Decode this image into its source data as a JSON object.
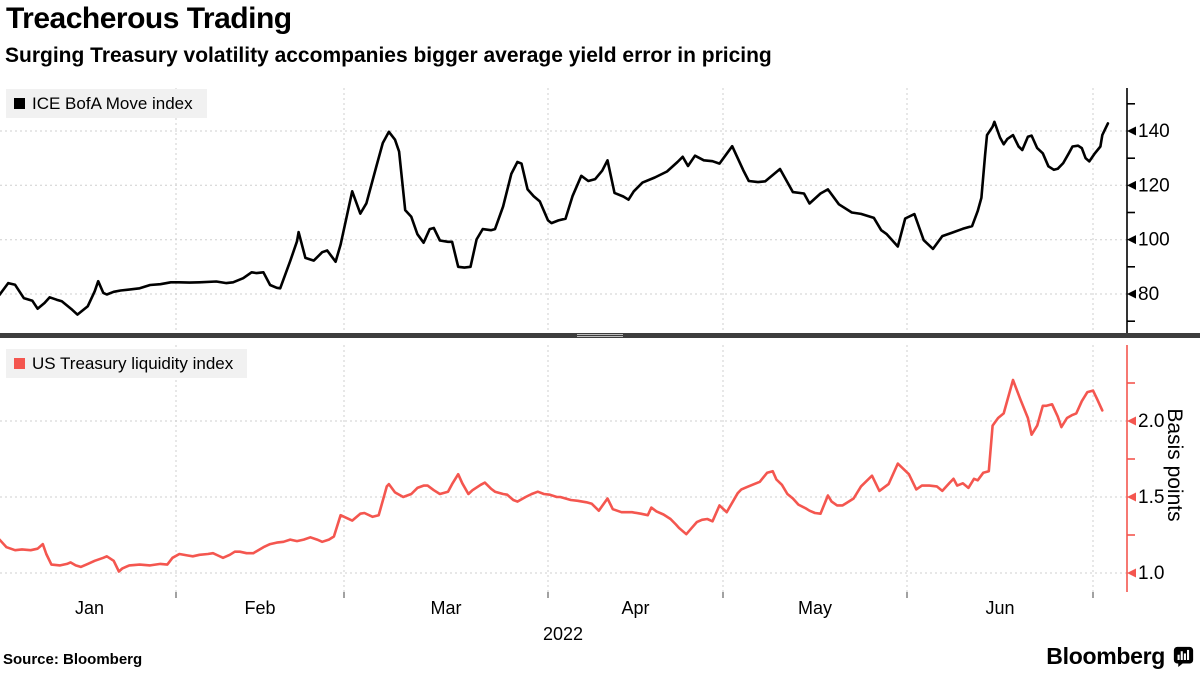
{
  "header": {
    "title": "Treacherous Trading",
    "subtitle": "Surging Treasury volatility accompanies bigger average yield error in pricing"
  },
  "x_axis": {
    "month_labels": [
      "Jan",
      "Feb",
      "Mar",
      "Apr",
      "May",
      "Jun"
    ],
    "year_label": "2022"
  },
  "footer": {
    "source_label": "Source: Bloomberg",
    "brand": "Bloomberg"
  },
  "colors": {
    "move_line": "#000000",
    "liquidity_line": "#f4564f",
    "grid": "#cfcfcf",
    "legend_bg": "#f1f1f1",
    "divider": "#3d3d3d",
    "text": "#000000"
  },
  "chart_data": [
    {
      "type": "line",
      "name": "ICE BofA Move index",
      "color": "#000000",
      "x_unit": "month of 2022 (1.0 = Jan 1, 7.0 = Jul 1)",
      "ylim": [
        65,
        152
      ],
      "ytick_values": [
        80,
        100,
        120,
        140
      ],
      "ytick_labels": [
        "80",
        "100",
        "120",
        "140"
      ],
      "minor_ticks": [
        70,
        90,
        110,
        130,
        150
      ],
      "grid": true,
      "legend_position": "top-left",
      "points": [
        [
          0.98,
          79.7
        ],
        [
          1.03,
          84
        ],
        [
          1.07,
          83.4
        ],
        [
          1.12,
          78.5
        ],
        [
          1.17,
          77.5
        ],
        [
          1.2,
          74.6
        ],
        [
          1.24,
          76.7
        ],
        [
          1.27,
          78.8
        ],
        [
          1.31,
          77.9
        ],
        [
          1.34,
          77.3
        ],
        [
          1.4,
          74.2
        ],
        [
          1.43,
          72.4
        ],
        [
          1.49,
          75.5
        ],
        [
          1.53,
          81
        ],
        [
          1.55,
          84.7
        ],
        [
          1.58,
          80.4
        ],
        [
          1.6,
          79.8
        ],
        [
          1.64,
          80.8
        ],
        [
          1.68,
          81.3
        ],
        [
          1.79,
          82.1
        ],
        [
          1.85,
          83.3
        ],
        [
          1.91,
          83.6
        ],
        [
          1.97,
          84.3
        ],
        [
          2.02,
          84.3
        ],
        [
          2.08,
          84.2
        ],
        [
          2.14,
          84.3
        ],
        [
          2.24,
          84.6
        ],
        [
          2.3,
          84
        ],
        [
          2.34,
          84.3
        ],
        [
          2.4,
          85.8
        ],
        [
          2.45,
          88
        ],
        [
          2.48,
          87.7
        ],
        [
          2.52,
          88
        ],
        [
          2.56,
          83.3
        ],
        [
          2.6,
          82.3
        ],
        [
          2.62,
          82.1
        ],
        [
          2.68,
          92.1
        ],
        [
          2.72,
          99.4
        ],
        [
          2.73,
          102.8
        ],
        [
          2.77,
          93.3
        ],
        [
          2.82,
          92.3
        ],
        [
          2.87,
          95.4
        ],
        [
          2.9,
          96
        ],
        [
          2.95,
          91.9
        ],
        [
          2.98,
          98.2
        ],
        [
          3.04,
          117.8
        ],
        [
          3.08,
          109.6
        ],
        [
          3.11,
          113.4
        ],
        [
          3.16,
          127.3
        ],
        [
          3.19,
          135.6
        ],
        [
          3.22,
          139.7
        ],
        [
          3.25,
          136.8
        ],
        [
          3.27,
          132.4
        ],
        [
          3.3,
          110.9
        ],
        [
          3.33,
          108.4
        ],
        [
          3.36,
          102
        ],
        [
          3.39,
          98.9
        ],
        [
          3.42,
          103.9
        ],
        [
          3.44,
          104.3
        ],
        [
          3.47,
          99.7
        ],
        [
          3.51,
          99.2
        ],
        [
          3.53,
          99.2
        ],
        [
          3.56,
          90
        ],
        [
          3.59,
          89.7
        ],
        [
          3.62,
          90
        ],
        [
          3.65,
          100.1
        ],
        [
          3.68,
          103.9
        ],
        [
          3.72,
          103.5
        ],
        [
          3.74,
          103.9
        ],
        [
          3.78,
          112.2
        ],
        [
          3.82,
          124.2
        ],
        [
          3.85,
          128.6
        ],
        [
          3.87,
          128
        ],
        [
          3.9,
          118.5
        ],
        [
          3.93,
          116
        ],
        [
          3.96,
          114.1
        ],
        [
          4.0,
          107.1
        ],
        [
          4.02,
          106.1
        ],
        [
          4.06,
          107.1
        ],
        [
          4.1,
          107.7
        ],
        [
          4.14,
          116
        ],
        [
          4.19,
          123.5
        ],
        [
          4.23,
          121.6
        ],
        [
          4.27,
          122.3
        ],
        [
          4.31,
          125.4
        ],
        [
          4.34,
          129.2
        ],
        [
          4.38,
          117.2
        ],
        [
          4.43,
          115.9
        ],
        [
          4.46,
          114.7
        ],
        [
          4.49,
          117.8
        ],
        [
          4.54,
          121
        ],
        [
          4.61,
          122.9
        ],
        [
          4.68,
          125.1
        ],
        [
          4.74,
          128.6
        ],
        [
          4.77,
          130.5
        ],
        [
          4.8,
          127.1
        ],
        [
          4.84,
          130.9
        ],
        [
          4.89,
          129.2
        ],
        [
          4.94,
          128.9
        ],
        [
          4.98,
          128
        ],
        [
          5.05,
          134.4
        ],
        [
          5.11,
          125.6
        ],
        [
          5.14,
          121.6
        ],
        [
          5.19,
          121.2
        ],
        [
          5.23,
          121.5
        ],
        [
          5.31,
          126
        ],
        [
          5.38,
          117.5
        ],
        [
          5.44,
          117
        ],
        [
          5.47,
          113.3
        ],
        [
          5.53,
          117
        ],
        [
          5.57,
          118.5
        ],
        [
          5.63,
          113
        ],
        [
          5.7,
          110
        ],
        [
          5.75,
          109.5
        ],
        [
          5.82,
          108
        ],
        [
          5.86,
          103.5
        ],
        [
          5.89,
          102
        ],
        [
          5.95,
          97.5
        ],
        [
          5.99,
          107.8
        ],
        [
          6.04,
          109.4
        ],
        [
          6.09,
          99.8
        ],
        [
          6.14,
          96.6
        ],
        [
          6.19,
          101.3
        ],
        [
          6.24,
          102.5
        ],
        [
          6.3,
          104
        ],
        [
          6.35,
          105
        ],
        [
          6.38,
          110.5
        ],
        [
          6.4,
          115.4
        ],
        [
          6.42,
          131.2
        ],
        [
          6.43,
          138.5
        ],
        [
          6.46,
          141.6
        ],
        [
          6.47,
          143.4
        ],
        [
          6.5,
          137.6
        ],
        [
          6.52,
          135.1
        ],
        [
          6.54,
          137.1
        ],
        [
          6.57,
          138.5
        ],
        [
          6.6,
          134.3
        ],
        [
          6.62,
          133
        ],
        [
          6.65,
          137.9
        ],
        [
          6.67,
          138.3
        ],
        [
          6.7,
          133.7
        ],
        [
          6.73,
          131.8
        ],
        [
          6.76,
          127
        ],
        [
          6.79,
          125.7
        ],
        [
          6.81,
          126.1
        ],
        [
          6.84,
          128.2
        ],
        [
          6.87,
          131.8
        ],
        [
          6.89,
          134.3
        ],
        [
          6.92,
          134.6
        ],
        [
          6.94,
          133.7
        ],
        [
          6.96,
          130
        ],
        [
          6.98,
          128.8
        ],
        [
          7.01,
          131.8
        ],
        [
          7.04,
          134.3
        ],
        [
          7.05,
          138.5
        ],
        [
          7.08,
          142.8
        ]
      ]
    },
    {
      "type": "line",
      "name": "US Treasury liquidity index",
      "ylabel": "Basis points",
      "color": "#f4564f",
      "x_unit": "month of 2022 (1.0 = Jan 1, 7.0 = Jul 1)",
      "ylim": [
        0.85,
        2.5
      ],
      "ytick_values": [
        1.0,
        1.5,
        2.0
      ],
      "ytick_labels": [
        "1.0",
        "1.5",
        "2.0"
      ],
      "minor_ticks": [
        1.25,
        1.75,
        2.25,
        2.5
      ],
      "grid": true,
      "legend_position": "top-left",
      "points": [
        [
          0.98,
          1.22
        ],
        [
          1.02,
          1.17
        ],
        [
          1.07,
          1.15
        ],
        [
          1.11,
          1.155
        ],
        [
          1.16,
          1.15
        ],
        [
          1.2,
          1.16
        ],
        [
          1.23,
          1.19
        ],
        [
          1.25,
          1.125
        ],
        [
          1.28,
          1.055
        ],
        [
          1.33,
          1.05
        ],
        [
          1.37,
          1.06
        ],
        [
          1.39,
          1.07
        ],
        [
          1.42,
          1.05
        ],
        [
          1.45,
          1.04
        ],
        [
          1.49,
          1.06
        ],
        [
          1.53,
          1.08
        ],
        [
          1.58,
          1.1
        ],
        [
          1.6,
          1.11
        ],
        [
          1.64,
          1.08
        ],
        [
          1.67,
          1.01
        ],
        [
          1.69,
          1.03
        ],
        [
          1.73,
          1.05
        ],
        [
          1.79,
          1.055
        ],
        [
          1.85,
          1.05
        ],
        [
          1.91,
          1.06
        ],
        [
          1.95,
          1.055
        ],
        [
          1.98,
          1.1
        ],
        [
          2.02,
          1.125
        ],
        [
          2.07,
          1.115
        ],
        [
          2.1,
          1.11
        ],
        [
          2.14,
          1.12
        ],
        [
          2.19,
          1.125
        ],
        [
          2.22,
          1.13
        ],
        [
          2.25,
          1.115
        ],
        [
          2.28,
          1.1
        ],
        [
          2.32,
          1.12
        ],
        [
          2.35,
          1.14
        ],
        [
          2.38,
          1.14
        ],
        [
          2.42,
          1.13
        ],
        [
          2.46,
          1.13
        ],
        [
          2.49,
          1.15
        ],
        [
          2.52,
          1.17
        ],
        [
          2.56,
          1.19
        ],
        [
          2.6,
          1.2
        ],
        [
          2.64,
          1.205
        ],
        [
          2.68,
          1.22
        ],
        [
          2.72,
          1.21
        ],
        [
          2.76,
          1.22
        ],
        [
          2.8,
          1.235
        ],
        [
          2.84,
          1.22
        ],
        [
          2.87,
          1.205
        ],
        [
          2.91,
          1.22
        ],
        [
          2.94,
          1.24
        ],
        [
          2.98,
          1.38
        ],
        [
          3.04,
          1.345
        ],
        [
          3.08,
          1.39
        ],
        [
          3.1,
          1.395
        ],
        [
          3.14,
          1.37
        ],
        [
          3.17,
          1.38
        ],
        [
          3.21,
          1.57
        ],
        [
          3.22,
          1.585
        ],
        [
          3.25,
          1.53
        ],
        [
          3.29,
          1.5
        ],
        [
          3.33,
          1.52
        ],
        [
          3.36,
          1.56
        ],
        [
          3.39,
          1.575
        ],
        [
          3.41,
          1.575
        ],
        [
          3.44,
          1.545
        ],
        [
          3.47,
          1.52
        ],
        [
          3.51,
          1.535
        ],
        [
          3.53,
          1.585
        ],
        [
          3.56,
          1.65
        ],
        [
          3.58,
          1.59
        ],
        [
          3.61,
          1.52
        ],
        [
          3.63,
          1.545
        ],
        [
          3.67,
          1.58
        ],
        [
          3.69,
          1.595
        ],
        [
          3.72,
          1.555
        ],
        [
          3.74,
          1.535
        ],
        [
          3.78,
          1.52
        ],
        [
          3.8,
          1.515
        ],
        [
          3.83,
          1.48
        ],
        [
          3.85,
          1.47
        ],
        [
          3.89,
          1.5
        ],
        [
          3.92,
          1.52
        ],
        [
          3.95,
          1.535
        ],
        [
          3.98,
          1.52
        ],
        [
          4.01,
          1.515
        ],
        [
          4.05,
          1.5
        ],
        [
          4.07,
          1.5
        ],
        [
          4.13,
          1.48
        ],
        [
          4.17,
          1.475
        ],
        [
          4.22,
          1.465
        ],
        [
          4.25,
          1.455
        ],
        [
          4.29,
          1.41
        ],
        [
          4.34,
          1.49
        ],
        [
          4.37,
          1.42
        ],
        [
          4.42,
          1.4
        ],
        [
          4.48,
          1.4
        ],
        [
          4.53,
          1.39
        ],
        [
          4.57,
          1.38
        ],
        [
          4.59,
          1.43
        ],
        [
          4.62,
          1.405
        ],
        [
          4.66,
          1.385
        ],
        [
          4.7,
          1.355
        ],
        [
          4.73,
          1.32
        ],
        [
          4.75,
          1.295
        ],
        [
          4.79,
          1.255
        ],
        [
          4.82,
          1.295
        ],
        [
          4.85,
          1.335
        ],
        [
          4.88,
          1.35
        ],
        [
          4.91,
          1.355
        ],
        [
          4.94,
          1.34
        ],
        [
          4.98,
          1.445
        ],
        [
          5.02,
          1.4
        ],
        [
          5.08,
          1.525
        ],
        [
          5.1,
          1.55
        ],
        [
          5.13,
          1.565
        ],
        [
          5.16,
          1.58
        ],
        [
          5.2,
          1.6
        ],
        [
          5.24,
          1.66
        ],
        [
          5.27,
          1.67
        ],
        [
          5.29,
          1.615
        ],
        [
          5.32,
          1.58
        ],
        [
          5.35,
          1.52
        ],
        [
          5.38,
          1.49
        ],
        [
          5.41,
          1.45
        ],
        [
          5.45,
          1.425
        ],
        [
          5.47,
          1.41
        ],
        [
          5.5,
          1.395
        ],
        [
          5.53,
          1.39
        ],
        [
          5.57,
          1.51
        ],
        [
          5.59,
          1.47
        ],
        [
          5.62,
          1.445
        ],
        [
          5.65,
          1.445
        ],
        [
          5.67,
          1.46
        ],
        [
          5.71,
          1.49
        ],
        [
          5.75,
          1.57
        ],
        [
          5.81,
          1.64
        ],
        [
          5.85,
          1.54
        ],
        [
          5.9,
          1.585
        ],
        [
          5.95,
          1.72
        ],
        [
          6.01,
          1.65
        ],
        [
          6.05,
          1.55
        ],
        [
          6.08,
          1.575
        ],
        [
          6.12,
          1.575
        ],
        [
          6.16,
          1.57
        ],
        [
          6.19,
          1.54
        ],
        [
          6.23,
          1.595
        ],
        [
          6.25,
          1.62
        ],
        [
          6.27,
          1.575
        ],
        [
          6.3,
          1.59
        ],
        [
          6.33,
          1.56
        ],
        [
          6.36,
          1.62
        ],
        [
          6.38,
          1.61
        ],
        [
          6.41,
          1.66
        ],
        [
          6.44,
          1.67
        ],
        [
          6.46,
          1.97
        ],
        [
          6.49,
          2.02
        ],
        [
          6.52,
          2.05
        ],
        [
          6.57,
          2.27
        ],
        [
          6.61,
          2.14
        ],
        [
          6.65,
          2.02
        ],
        [
          6.67,
          1.91
        ],
        [
          6.7,
          1.97
        ],
        [
          6.73,
          2.1
        ],
        [
          6.75,
          2.1
        ],
        [
          6.78,
          2.11
        ],
        [
          6.81,
          2.03
        ],
        [
          6.83,
          1.96
        ],
        [
          6.86,
          2.02
        ],
        [
          6.89,
          2.04
        ],
        [
          6.91,
          2.05
        ],
        [
          6.94,
          2.13
        ],
        [
          6.97,
          2.19
        ],
        [
          7.0,
          2.2
        ],
        [
          7.02,
          2.15
        ],
        [
          7.05,
          2.07
        ]
      ]
    }
  ]
}
